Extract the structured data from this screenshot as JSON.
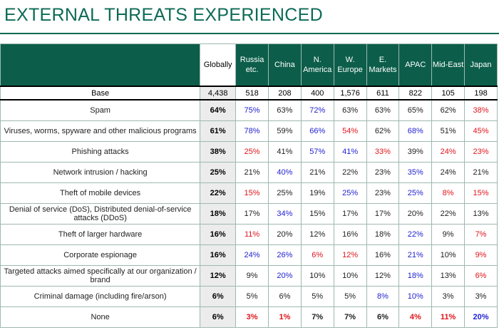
{
  "title": "EXTERNAL THREATS EXPERIENCED",
  "columns": [
    "Globally",
    "Russia etc.",
    "China",
    "N. America",
    "W. Europe",
    "E. Markets",
    "APAC",
    "Mid-East",
    "Japan"
  ],
  "base": {
    "label": "Base",
    "values": [
      "4,438",
      "518",
      "208",
      "400",
      "1,576",
      "611",
      "822",
      "105",
      "198"
    ]
  },
  "rows": [
    {
      "label": "Spam",
      "values": [
        "64%",
        "75%",
        "63%",
        "72%",
        "63%",
        "63%",
        "65%",
        "62%",
        "38%"
      ],
      "colors": [
        "k",
        "blue",
        "k",
        "blue",
        "k",
        "k",
        "k",
        "k",
        "red"
      ]
    },
    {
      "label": "Viruses, worms, spyware and other malicious programs",
      "values": [
        "61%",
        "78%",
        "59%",
        "66%",
        "54%",
        "62%",
        "68%",
        "51%",
        "45%"
      ],
      "colors": [
        "k",
        "blue",
        "k",
        "blue",
        "red",
        "k",
        "blue",
        "k",
        "red"
      ]
    },
    {
      "label": "Phishing attacks",
      "values": [
        "38%",
        "25%",
        "41%",
        "57%",
        "41%",
        "33%",
        "39%",
        "24%",
        "23%"
      ],
      "colors": [
        "k",
        "red",
        "k",
        "blue",
        "blue",
        "red",
        "k",
        "red",
        "red"
      ]
    },
    {
      "label": "Network intrusion / hacking",
      "values": [
        "25%",
        "21%",
        "40%",
        "21%",
        "22%",
        "23%",
        "35%",
        "24%",
        "21%"
      ],
      "colors": [
        "k",
        "k",
        "blue",
        "k",
        "k",
        "k",
        "blue",
        "k",
        "k"
      ]
    },
    {
      "label": "Theft of mobile devices",
      "values": [
        "22%",
        "15%",
        "25%",
        "19%",
        "25%",
        "23%",
        "25%",
        "8%",
        "15%"
      ],
      "colors": [
        "k",
        "red",
        "k",
        "k",
        "blue",
        "k",
        "blue",
        "red",
        "red"
      ]
    },
    {
      "label": "Denial of service (DoS), Distributed denial-of-service attacks (DDoS)",
      "values": [
        "18%",
        "17%",
        "34%",
        "15%",
        "17%",
        "17%",
        "20%",
        "22%",
        "13%"
      ],
      "colors": [
        "k",
        "k",
        "blue",
        "k",
        "k",
        "k",
        "k",
        "k",
        "k"
      ]
    },
    {
      "label": "Theft of larger hardware",
      "values": [
        "16%",
        "11%",
        "20%",
        "12%",
        "16%",
        "18%",
        "22%",
        "9%",
        "7%"
      ],
      "colors": [
        "k",
        "red",
        "k",
        "k",
        "k",
        "k",
        "blue",
        "k",
        "red"
      ]
    },
    {
      "label": "Corporate espionage",
      "values": [
        "16%",
        "24%",
        "26%",
        "6%",
        "12%",
        "16%",
        "21%",
        "10%",
        "9%"
      ],
      "colors": [
        "k",
        "blue",
        "blue",
        "red",
        "red",
        "k",
        "blue",
        "k",
        "red"
      ]
    },
    {
      "label": "Targeted attacks aimed specifically at our organization / brand",
      "values": [
        "12%",
        "9%",
        "20%",
        "10%",
        "10%",
        "12%",
        "18%",
        "13%",
        "6%"
      ],
      "colors": [
        "k",
        "k",
        "blue",
        "k",
        "k",
        "k",
        "blue",
        "k",
        "red"
      ]
    },
    {
      "label": "Criminal damage (including fire/arson)",
      "values": [
        "6%",
        "5%",
        "6%",
        "5%",
        "5%",
        "8%",
        "10%",
        "3%",
        "3%"
      ],
      "colors": [
        "k",
        "k",
        "k",
        "k",
        "k",
        "blue",
        "blue",
        "k",
        "k"
      ]
    },
    {
      "label": "None",
      "values": [
        "6%",
        "3%",
        "1%",
        "7%",
        "7%",
        "6%",
        "4%",
        "11%",
        "20%"
      ],
      "colors": [
        "k",
        "red",
        "red",
        "k",
        "k",
        "k",
        "red",
        "red",
        "blue"
      ]
    }
  ],
  "palette": {
    "header_green": "#0c5e4a",
    "title_green": "#0c6a56",
    "above_blue": "#1f1fd0",
    "below_red": "#e0151b"
  }
}
